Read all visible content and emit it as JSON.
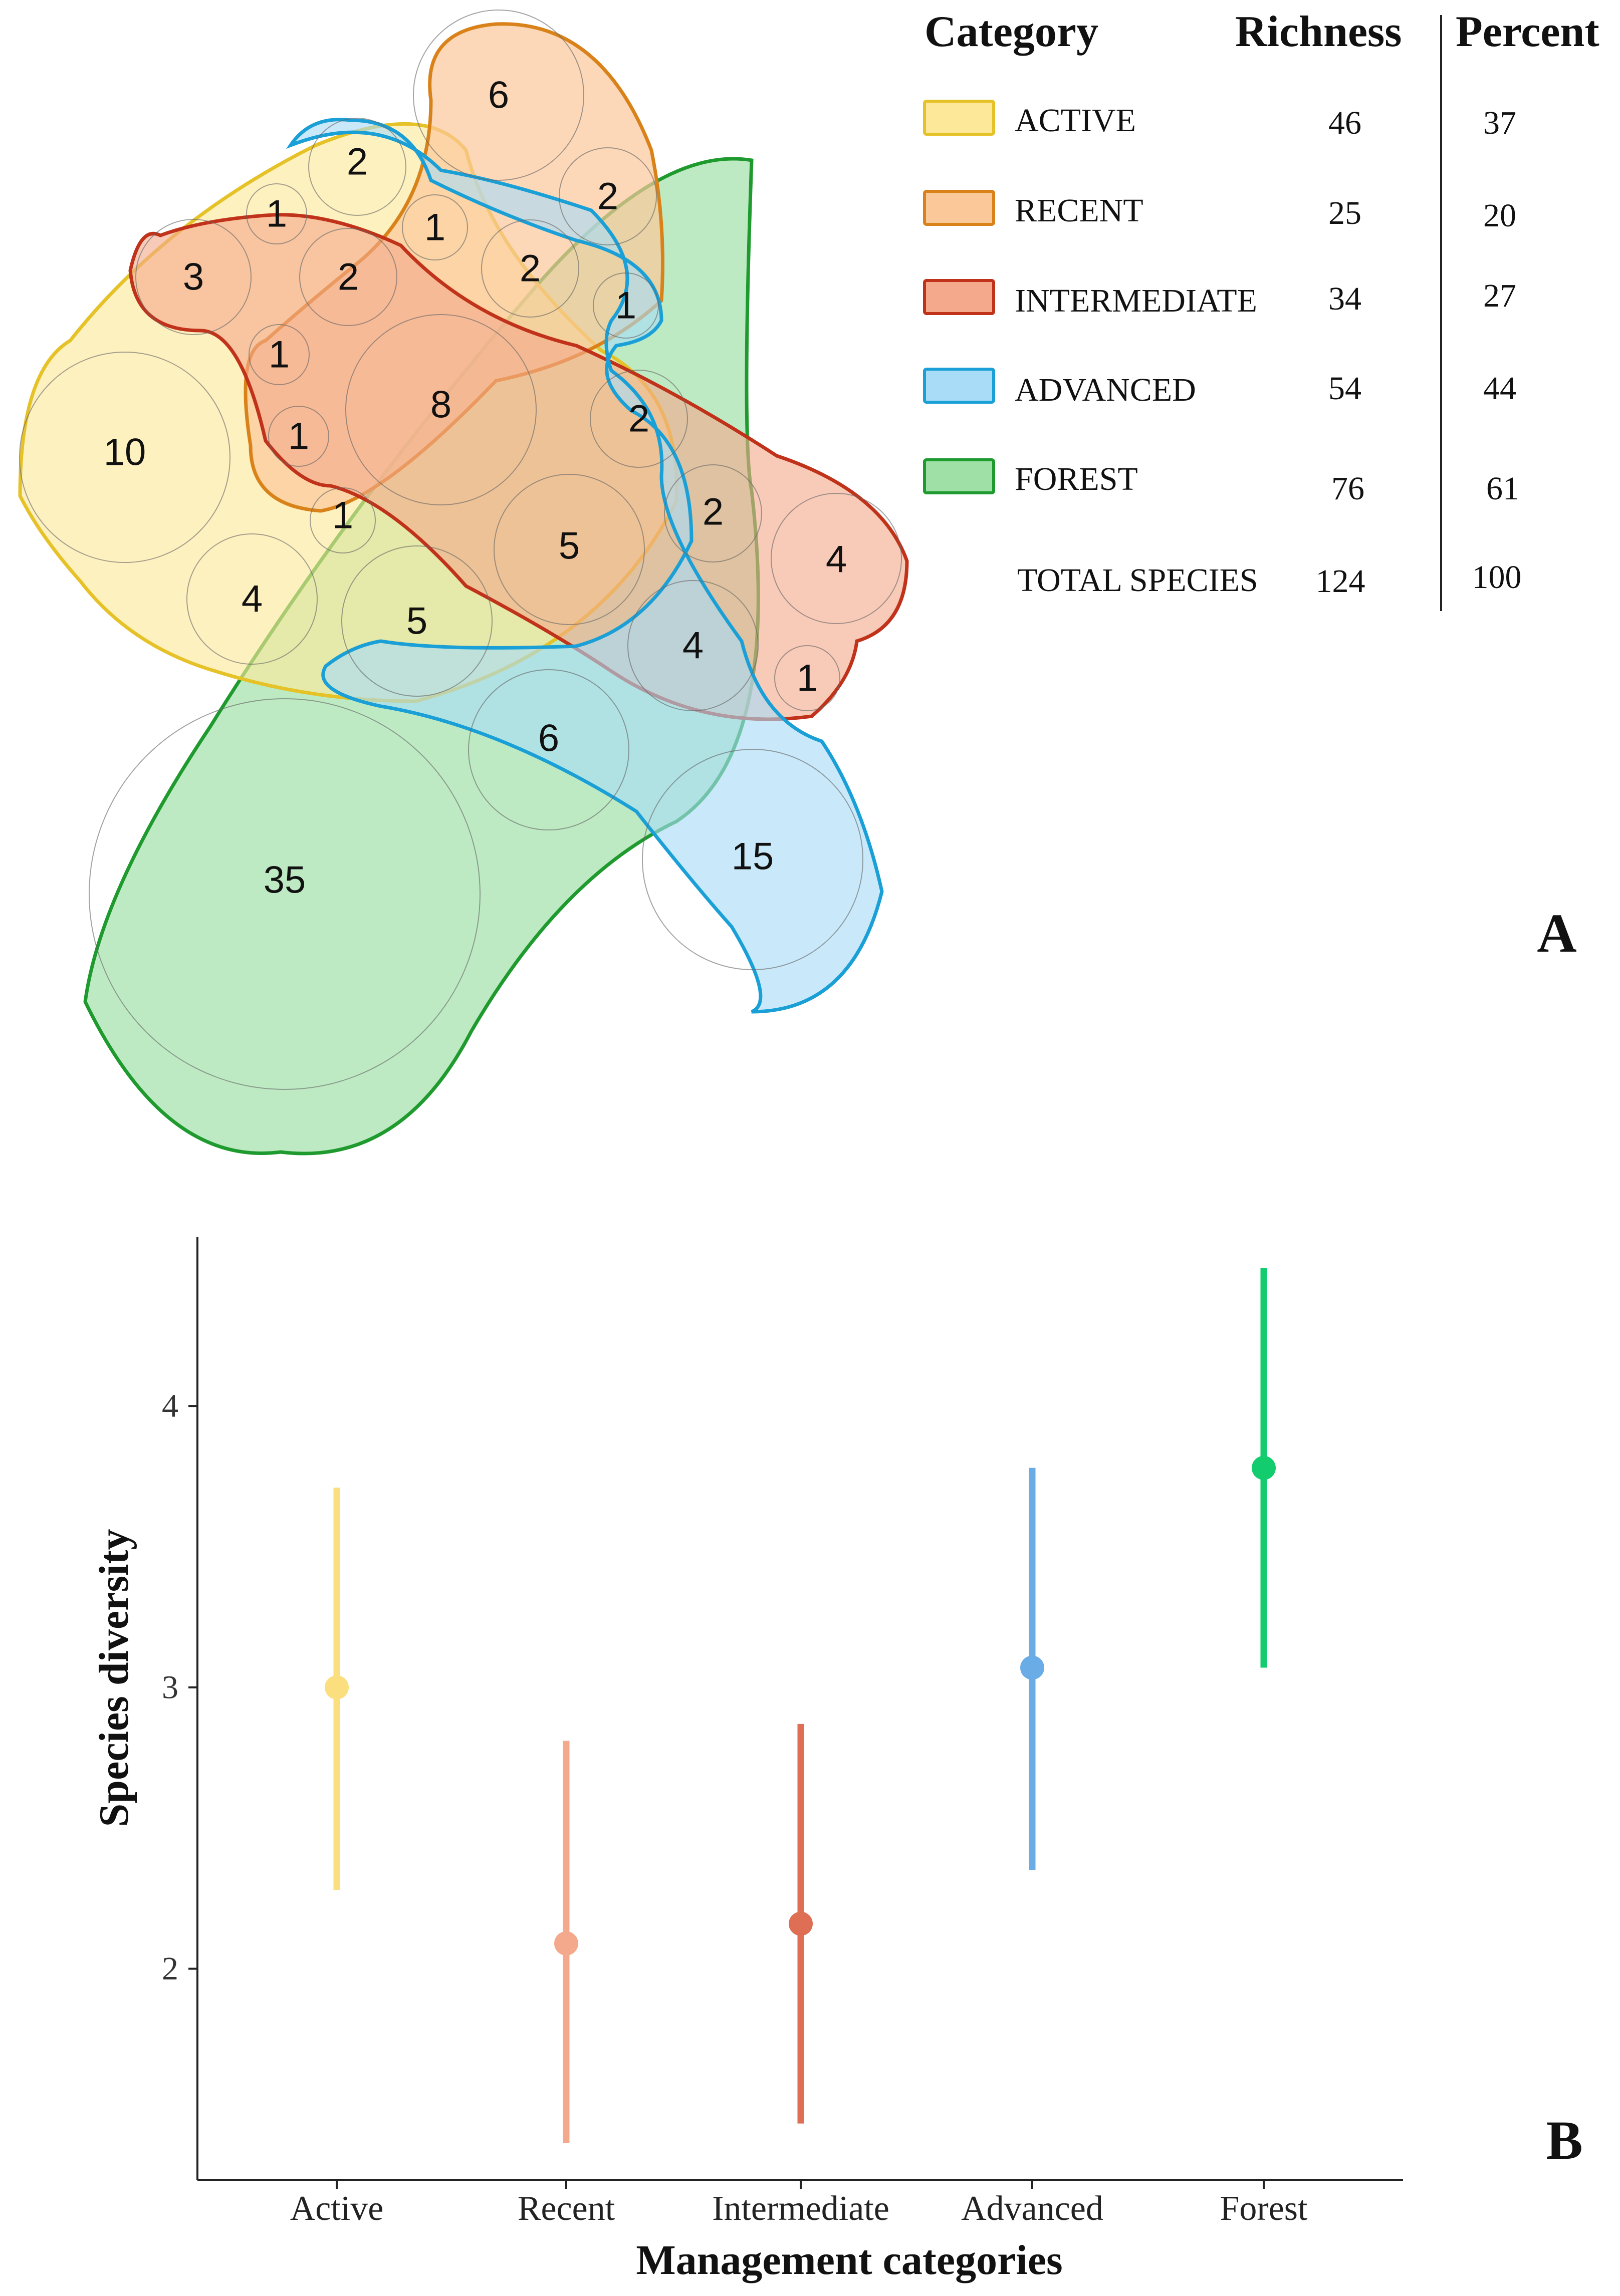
{
  "panel_a": {
    "panel_letter": "A",
    "legend": {
      "header_category": "Category",
      "header_richness": "Richness",
      "header_percent": "Percent",
      "rows": [
        {
          "name": "ACTIVE",
          "richness": "46",
          "percent": "37",
          "fill": "#fde89a",
          "stroke": "#e6c229"
        },
        {
          "name": "RECENT",
          "richness": "25",
          "percent": "20",
          "fill": "#fbc89a",
          "stroke": "#d9821a"
        },
        {
          "name": "INTERMEDIATE",
          "richness": "34",
          "percent": "27",
          "fill": "#f4a98c",
          "stroke": "#c0321a"
        },
        {
          "name": "ADVANCED",
          "richness": "54",
          "percent": "44",
          "fill": "#a8dcf7",
          "stroke": "#1aa0d6"
        },
        {
          "name": "FOREST",
          "richness": "76",
          "percent": "61",
          "fill": "#9ee0a6",
          "stroke": "#1f9a2e"
        }
      ],
      "total_label": "TOTAL SPECIES",
      "total_richness": "124",
      "total_percent": "100"
    },
    "region_counts": [
      "6",
      "2",
      "1",
      "2",
      "1",
      "3",
      "2",
      "2",
      "1",
      "1",
      "8",
      "1",
      "10",
      "2",
      "1",
      "5",
      "2",
      "4",
      "4",
      "5",
      "4",
      "1",
      "6",
      "35",
      "15"
    ]
  },
  "chart_data": {
    "type": "pointrange",
    "panel_letter": "B",
    "xlabel": "Management categories",
    "ylabel": "Species diversity",
    "ylim": [
      1.25,
      4.6
    ],
    "yticks": [
      2,
      3,
      4
    ],
    "ytick_labels": [
      "2",
      "3",
      "4"
    ],
    "categories": [
      "Active",
      "Recent",
      "Intermediate",
      "Advanced",
      "Forest"
    ],
    "points": [
      {
        "category": "Active",
        "mean": 3.0,
        "lower": 2.28,
        "upper": 3.71,
        "color": "#fbdf7e"
      },
      {
        "category": "Recent",
        "mean": 2.09,
        "lower": 1.38,
        "upper": 2.81,
        "color": "#f4a98c"
      },
      {
        "category": "Intermediate",
        "mean": 2.16,
        "lower": 1.45,
        "upper": 2.87,
        "color": "#de6f55"
      },
      {
        "category": "Advanced",
        "mean": 3.07,
        "lower": 2.35,
        "upper": 3.78,
        "color": "#6aace6"
      },
      {
        "category": "Forest",
        "mean": 3.78,
        "lower": 3.07,
        "upper": 4.49,
        "color": "#13cc6d"
      }
    ]
  }
}
